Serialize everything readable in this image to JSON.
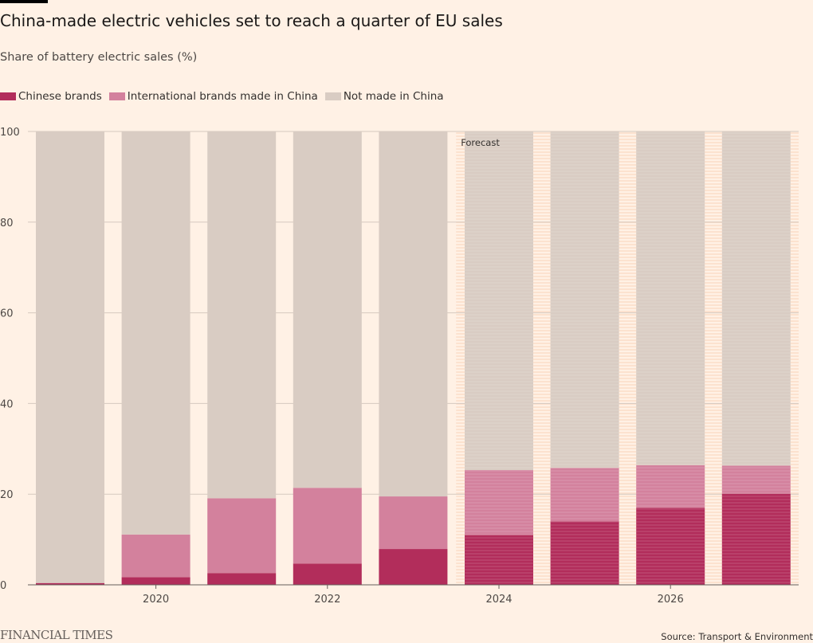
{
  "header": {
    "title": "China-made electric vehicles set to reach a quarter of EU sales",
    "subtitle": "Share of battery electric sales (%)"
  },
  "legend": [
    {
      "label": "Chinese brands",
      "color": "#b22d5b"
    },
    {
      "label": "International brands made in China",
      "color": "#d3819d"
    },
    {
      "label": "Not made in China",
      "color": "#d9ccc3"
    }
  ],
  "footer": {
    "logo": "FINANCIAL TIMES",
    "source": "Source: Transport & Environment"
  },
  "chart_data": {
    "type": "bar",
    "stacked": true,
    "x": [
      2019,
      2020,
      2021,
      2022,
      2023,
      2024,
      2025,
      2026,
      2027
    ],
    "x_tick_labels": [
      "2020",
      "2022",
      "2024",
      "2026"
    ],
    "x_tick_values": [
      2020,
      2022,
      2024,
      2026
    ],
    "ylim": [
      0,
      100
    ],
    "y_ticks": [
      0,
      20,
      40,
      60,
      80,
      100
    ],
    "grid": true,
    "legend_position": "top-left",
    "forecast_start": 2024,
    "annotation": "Forecast",
    "series": [
      {
        "name": "Chinese brands",
        "color": "#b22d5b",
        "values": [
          0.4,
          1.7,
          2.6,
          4.7,
          7.9,
          11.0,
          14.0,
          17.0,
          20.1
        ]
      },
      {
        "name": "International brands made in China",
        "color": "#d3819d",
        "values": [
          0.0,
          9.4,
          16.5,
          16.7,
          11.6,
          14.3,
          11.8,
          9.4,
          6.2
        ]
      },
      {
        "name": "Not made in China",
        "color": "#d9ccc3",
        "values": [
          99.6,
          88.9,
          80.9,
          78.6,
          80.5,
          74.7,
          74.2,
          73.6,
          73.7
        ]
      }
    ]
  }
}
